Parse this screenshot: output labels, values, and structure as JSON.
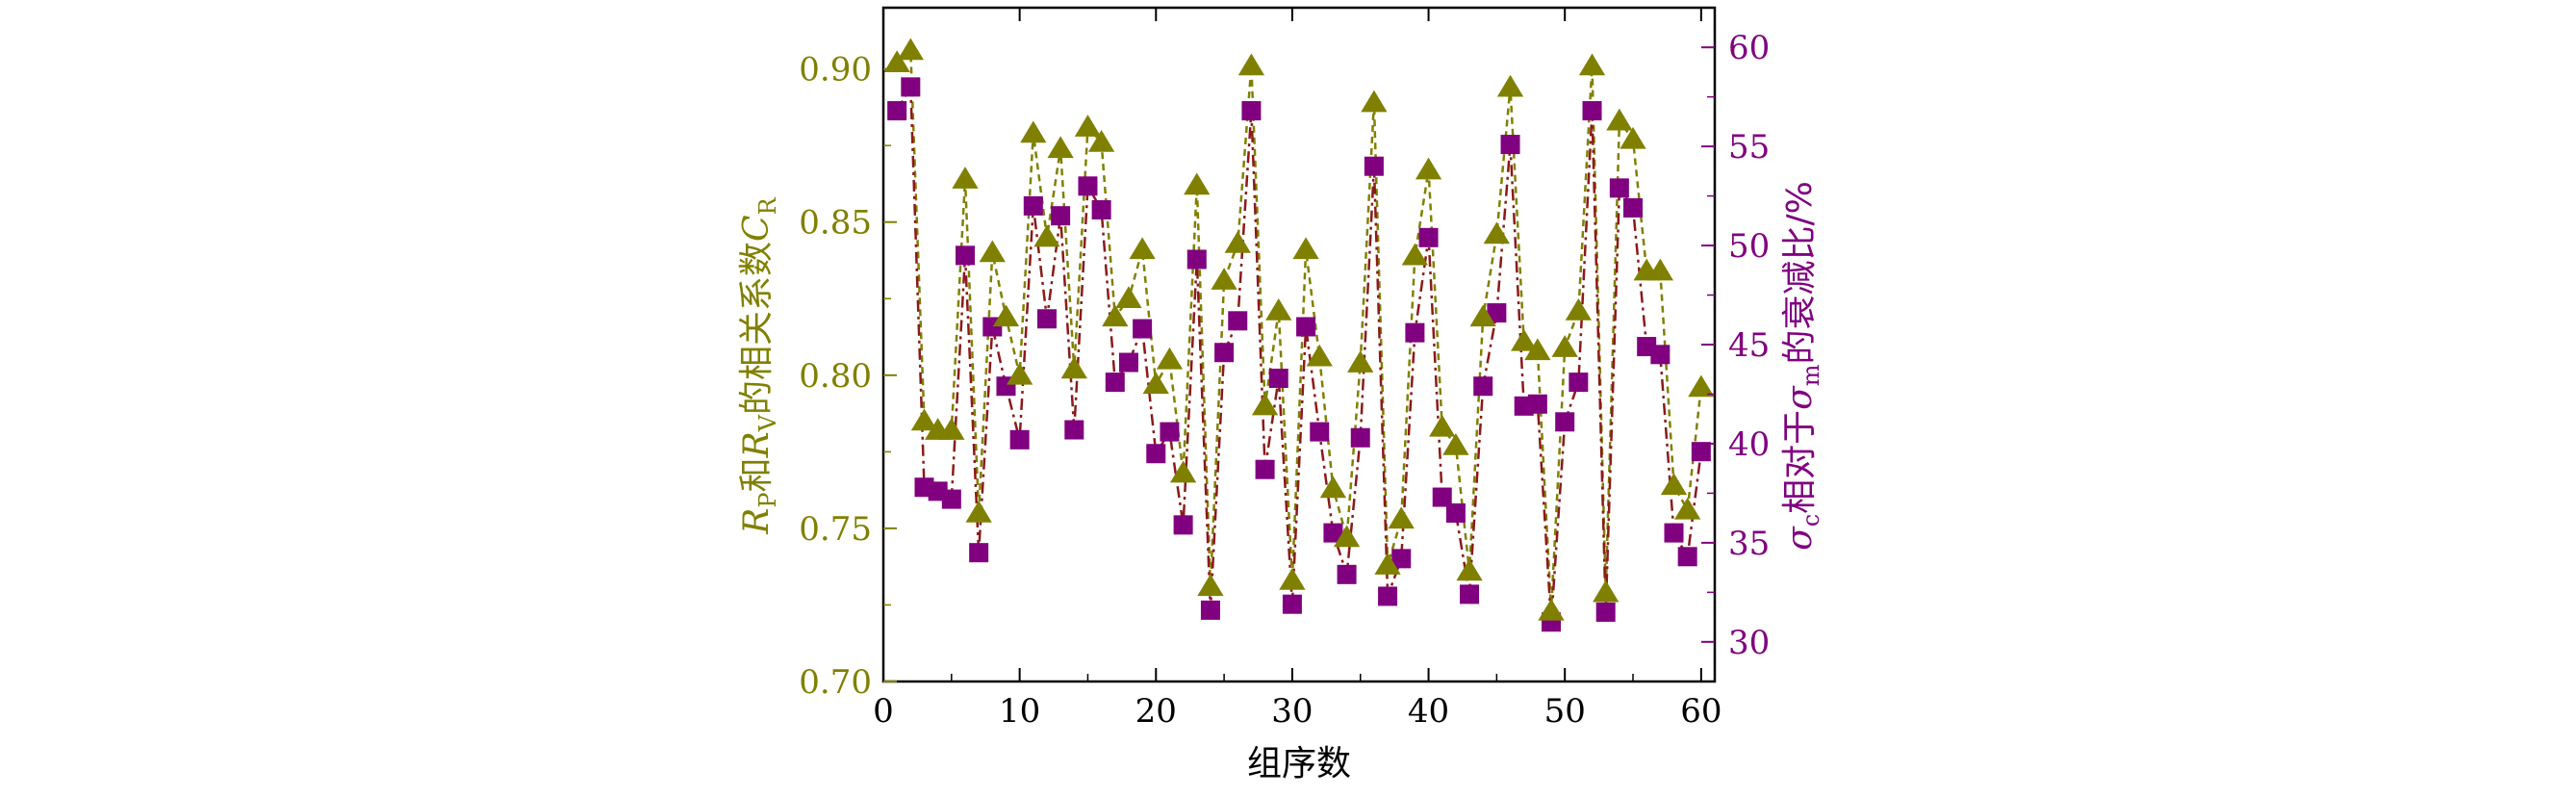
{
  "chart_data": {
    "type": "line",
    "xlabel": "组序数",
    "ylabel_left": {
      "R1": "R",
      "P_sub": "P",
      "mid": "和",
      "R2": "R",
      "V_sub": "V",
      "rest": "的相关系数",
      "C": "C",
      "R_sub": "R"
    },
    "ylabel_right": {
      "sigma1": "σ",
      "c_sub": "c",
      "mid": "相对于",
      "sigma2": "σ",
      "m_sub": "m",
      "rest": "的衰减比/%"
    },
    "xlim": [
      0,
      61
    ],
    "x_ticks": [
      0,
      10,
      20,
      30,
      40,
      50,
      60
    ],
    "x_tick_labels": [
      "0",
      "10",
      "20",
      "30",
      "40",
      "50",
      "60"
    ],
    "ylim_left": [
      0.7,
      0.92
    ],
    "y_ticks_left": [
      0.7,
      0.75,
      0.8,
      0.85,
      0.9
    ],
    "y_tick_labels_left": [
      "0.70",
      "0.75",
      "0.80",
      "0.85",
      "0.90"
    ],
    "ylim_right": [
      28,
      62
    ],
    "y_ticks_right": [
      30,
      35,
      40,
      45,
      50,
      55,
      60
    ],
    "y_tick_labels_right": [
      "30",
      "35",
      "40",
      "45",
      "50",
      "55",
      "60"
    ],
    "x": [
      1,
      2,
      3,
      4,
      5,
      6,
      7,
      8,
      9,
      10,
      11,
      12,
      13,
      14,
      15,
      16,
      17,
      18,
      19,
      20,
      21,
      22,
      23,
      24,
      25,
      26,
      27,
      28,
      29,
      30,
      31,
      32,
      33,
      34,
      35,
      36,
      37,
      38,
      39,
      40,
      41,
      42,
      43,
      44,
      45,
      46,
      47,
      48,
      49,
      50,
      51,
      52,
      53,
      54,
      55,
      56,
      57,
      58,
      59,
      60
    ],
    "series": [
      {
        "axis": "left",
        "marker": "triangle",
        "line": "dashed",
        "color": "#808000",
        "line_color": "#808000",
        "values": [
          0.902,
          0.906,
          0.785,
          0.782,
          0.782,
          0.864,
          0.755,
          0.84,
          0.819,
          0.8,
          0.879,
          0.845,
          0.874,
          0.802,
          0.881,
          0.876,
          0.819,
          0.825,
          0.841,
          0.797,
          0.805,
          0.768,
          0.862,
          0.731,
          0.831,
          0.843,
          0.901,
          0.79,
          0.821,
          0.733,
          0.841,
          0.806,
          0.763,
          0.747,
          0.804,
          0.889,
          0.738,
          0.753,
          0.839,
          0.867,
          0.783,
          0.777,
          0.736,
          0.819,
          0.846,
          0.894,
          0.811,
          0.808,
          0.723,
          0.809,
          0.821,
          0.901,
          0.729,
          0.883,
          0.877,
          0.834,
          0.834,
          0.764,
          0.756,
          0.796
        ]
      },
      {
        "axis": "right",
        "marker": "square",
        "line": "dash-dot",
        "color": "#800080",
        "line_color": "#8B1A1A",
        "values": [
          56.8,
          58.0,
          37.8,
          37.6,
          37.2,
          49.5,
          34.5,
          45.9,
          42.9,
          40.2,
          52.0,
          46.3,
          51.5,
          40.7,
          53.0,
          51.8,
          43.1,
          44.1,
          45.8,
          39.5,
          40.6,
          35.9,
          49.3,
          31.6,
          44.6,
          46.2,
          56.8,
          38.7,
          43.3,
          31.9,
          45.9,
          40.6,
          35.5,
          33.4,
          40.3,
          54.0,
          32.3,
          34.2,
          45.6,
          50.4,
          37.3,
          36.5,
          32.4,
          42.9,
          46.6,
          55.1,
          41.9,
          42.0,
          31.0,
          41.1,
          43.1,
          56.8,
          31.5,
          52.9,
          51.9,
          44.9,
          44.5,
          35.5,
          34.3,
          39.6
        ]
      }
    ],
    "colors": {
      "left_axis": "#808000",
      "right_axis": "#800080",
      "frame": "#000000"
    }
  }
}
